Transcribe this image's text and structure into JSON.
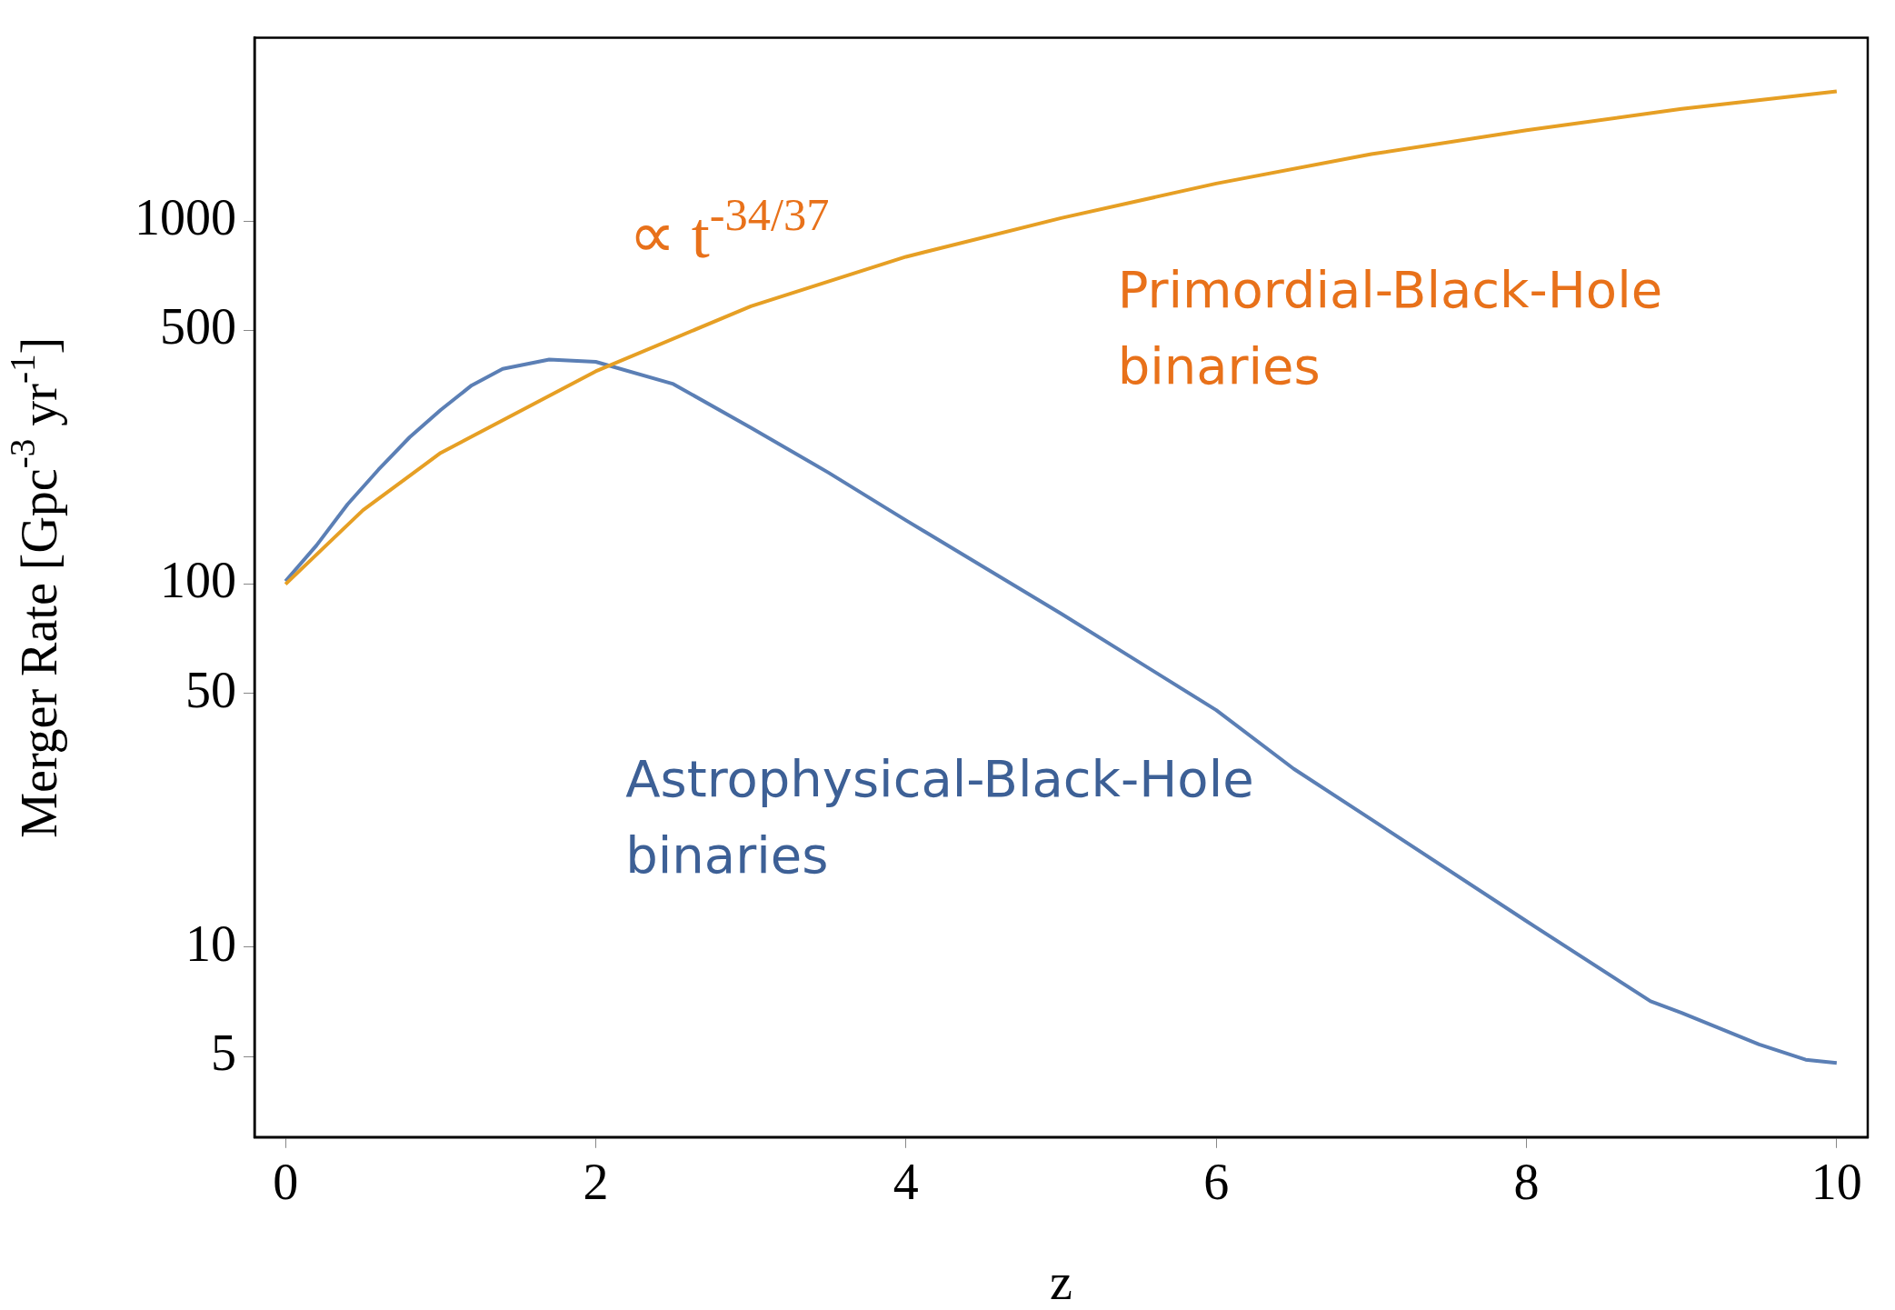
{
  "chart_data": {
    "type": "line",
    "xlabel": "z",
    "ylabel": "Merger Rate [Gpc$^{-3}$ yr$^{-1}$]",
    "log": "y",
    "grid": false,
    "legend": false,
    "marker": "none",
    "line_style": "solid",
    "xlim": [
      -0.2,
      10.2
    ],
    "xticks": [
      0,
      2,
      4,
      6,
      8,
      10
    ],
    "ylim": [
      3,
      3200
    ],
    "yticks": [
      5,
      10,
      50,
      100,
      500,
      1000
    ],
    "series": [
      {
        "color": "#e69f24",
        "x": [
          0,
          0.5,
          1,
          2,
          3,
          4,
          5,
          6,
          7,
          8,
          9,
          10
        ],
        "values": [
          100,
          160,
          230,
          386,
          583,
          798,
          1020,
          1270,
          1530,
          1780,
          2040,
          2280
        ]
      },
      {
        "color": "#5b7fb5",
        "x": [
          0,
          0.2,
          0.4,
          0.6,
          0.8,
          1,
          1.2,
          1.4,
          1.7,
          2,
          2.5,
          3,
          3.5,
          4,
          5,
          6,
          6.5,
          7,
          8,
          8.8,
          9,
          9.5,
          9.8,
          10
        ],
        "values": [
          102,
          128,
          166,
          207,
          254,
          302,
          353,
          392,
          416,
          410,
          356,
          270,
          203,
          150,
          83,
          45,
          31,
          22.5,
          11.8,
          7.1,
          6.6,
          5.4,
          4.9,
          4.8
        ]
      }
    ],
    "annotations": [
      "∝ t$^{-34/37}$",
      "Primordial-Black-Hole\nbinaries",
      "Astrophysical-Black-Hole\nbinaries"
    ]
  }
}
